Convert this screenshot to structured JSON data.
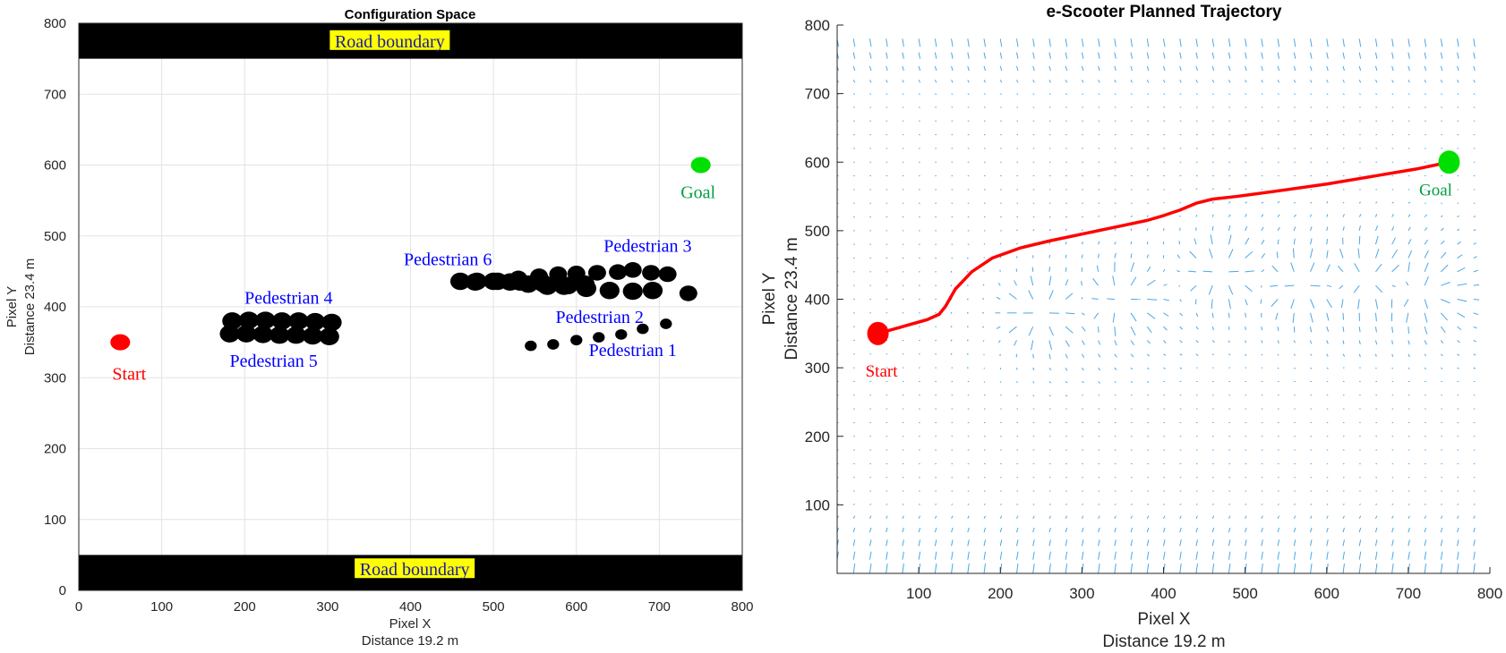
{
  "chart_data": [
    {
      "type": "scatter",
      "title": "Configuration Space",
      "xlabel": [
        "Pixel X",
        "Distance 19.2 m"
      ],
      "ylabel": [
        "Pixel Y",
        "Distance 23.4 m"
      ],
      "xlim": [
        0,
        800
      ],
      "ylim": [
        0,
        800
      ],
      "xticks": [
        0,
        100,
        200,
        300,
        400,
        500,
        600,
        700,
        800
      ],
      "yticks": [
        0,
        100,
        200,
        300,
        400,
        500,
        600,
        700,
        800
      ],
      "grid": true,
      "road_boundaries": [
        {
          "label": "Road boundary",
          "y_range": [
            750,
            800
          ],
          "label_xy": [
            375,
            775
          ]
        },
        {
          "label": "Road boundary",
          "y_range": [
            0,
            50
          ],
          "label_xy": [
            405,
            30
          ]
        }
      ],
      "start": {
        "label": "Start",
        "x": 50,
        "y": 350,
        "color": "#ff0000"
      },
      "goal": {
        "label": "Goal",
        "x": 750,
        "y": 600,
        "color": "#00e000"
      },
      "pedestrians": [
        {
          "name": "Pedestrian 1",
          "label_xy": [
            668,
            338
          ],
          "points": [
            [
              545,
              345
            ],
            [
              572,
              347
            ],
            [
              600,
              353
            ],
            [
              627,
              357
            ],
            [
              654,
              361
            ],
            [
              680,
              369
            ],
            [
              708,
              376
            ]
          ],
          "size": 6
        },
        {
          "name": "Pedestrian 2",
          "label_xy": [
            628,
            385
          ],
          "points": [
            [
              478,
              435
            ],
            [
              505,
              436
            ],
            [
              532,
              435
            ],
            [
              560,
              433
            ],
            [
              585,
              429
            ],
            [
              612,
              426
            ],
            [
              640,
              423
            ],
            [
              668,
              422
            ],
            [
              692,
              423
            ]
          ],
          "size": 10
        },
        {
          "name": "Pedestrian 3",
          "label_xy": [
            686,
            485
          ],
          "points": [
            [
              530,
              440
            ],
            [
              555,
              443
            ],
            [
              578,
              446
            ],
            [
              600,
              447
            ],
            [
              625,
              448
            ],
            [
              650,
              449
            ],
            [
              668,
              452
            ],
            [
              690,
              448
            ],
            [
              710,
              446
            ],
            [
              735,
              419
            ]
          ],
          "size": 9
        },
        {
          "name": "Pedestrian 4",
          "label_xy": [
            253,
            412
          ],
          "points": [
            [
              185,
              380
            ],
            [
              205,
              381
            ],
            [
              225,
              381
            ],
            [
              245,
              380
            ],
            [
              265,
              380
            ],
            [
              285,
              379
            ],
            [
              305,
              378
            ]
          ],
          "size": 10
        },
        {
          "name": "Pedestrian 5",
          "label_xy": [
            235,
            323
          ],
          "points": [
            [
              182,
              362
            ],
            [
              202,
              362
            ],
            [
              222,
              361
            ],
            [
              242,
              360
            ],
            [
              262,
              360
            ],
            [
              282,
              359
            ],
            [
              302,
              358
            ]
          ],
          "size": 10
        },
        {
          "name": "Pedestrian 6",
          "label_xy": [
            445,
            466
          ],
          "points": [
            [
              460,
              436
            ],
            [
              480,
              436
            ],
            [
              500,
              436
            ],
            [
              520,
              435
            ],
            [
              542,
              432
            ],
            [
              565,
              429
            ],
            [
              590,
              430
            ],
            [
              610,
              432
            ]
          ],
          "size": 10
        }
      ]
    },
    {
      "type": "line",
      "title": "e-Scooter Planned Trajectory",
      "xlabel": [
        "Pixel X",
        "Distance 19.2 m"
      ],
      "ylabel": [
        "Pixel Y",
        "Distance 23.4 m"
      ],
      "xlim": [
        0,
        800
      ],
      "ylim": [
        0,
        800
      ],
      "xticks": [
        100,
        200,
        300,
        400,
        500,
        600,
        700,
        800
      ],
      "yticks": [
        100,
        200,
        300,
        400,
        500,
        600,
        700,
        800
      ],
      "series": [
        {
          "color": "#ff0000",
          "x": [
            50,
            80,
            110,
            125,
            133,
            145,
            165,
            190,
            225,
            260,
            300,
            340,
            380,
            400,
            420,
            440,
            460,
            490,
            540,
            600,
            660,
            710,
            750
          ],
          "y": [
            350,
            360,
            370,
            378,
            390,
            415,
            440,
            460,
            475,
            485,
            495,
            505,
            515,
            522,
            530,
            540,
            546,
            550,
            558,
            568,
            580,
            590,
            600
          ]
        }
      ],
      "start": {
        "label": "Start",
        "x": 50,
        "y": 350,
        "color": "#ff0000"
      },
      "goal": {
        "label": "Goal",
        "x": 750,
        "y": 600,
        "color": "#00e000"
      },
      "quiver": {
        "color": "#4aa7e6",
        "grid_step": 20
      }
    }
  ]
}
